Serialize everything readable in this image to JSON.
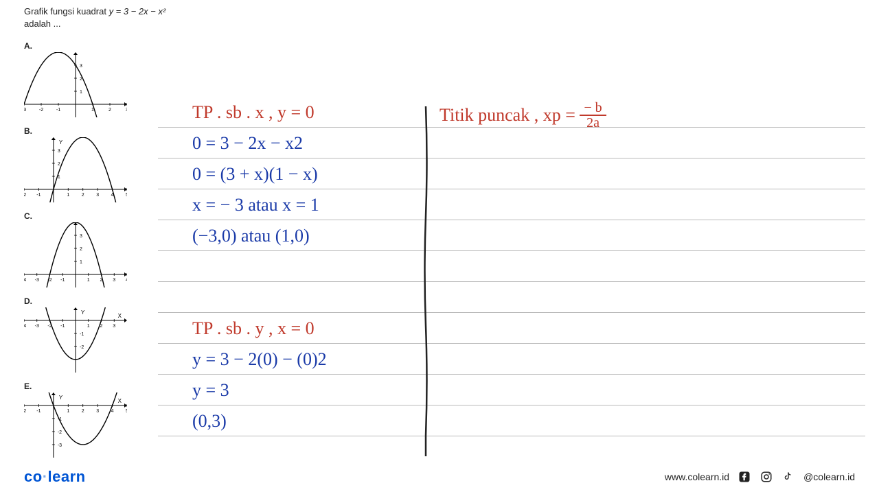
{
  "question": {
    "line1_prefix": "Grafik  fungsi  kuadrat  ",
    "equation": "y = 3 − 2x − x²",
    "line2": "adalah ..."
  },
  "choices": [
    {
      "label": "A.",
      "parabola": {
        "dir": "down",
        "vx": -1,
        "vy": 4,
        "roots": [
          -3,
          1
        ]
      },
      "xrange": [
        -3,
        3
      ],
      "yrange": [
        -1,
        4
      ],
      "xticks": [
        -3,
        -2,
        -1,
        0,
        1,
        2,
        3
      ],
      "yticks": [
        1,
        2,
        3
      ]
    },
    {
      "label": "B.",
      "parabola": {
        "dir": "down",
        "vx": 2,
        "vy": 4,
        "roots": [
          0,
          4
        ]
      },
      "xrange": [
        -2,
        5
      ],
      "yrange": [
        -1,
        4
      ],
      "xticks": [
        -2,
        -1,
        0,
        1,
        2,
        3,
        4,
        5
      ],
      "yticks": [
        1,
        2,
        3
      ],
      "ylabel": "Y"
    },
    {
      "label": "C.",
      "parabola": {
        "dir": "down",
        "vx": 0,
        "vy": 4,
        "roots": [
          -2,
          2
        ]
      },
      "xrange": [
        -4,
        4
      ],
      "yrange": [
        -1,
        4
      ],
      "xticks": [
        -4,
        -3,
        -2,
        -1,
        0,
        1,
        2,
        3,
        4
      ],
      "yticks": [
        1,
        2,
        3
      ]
    },
    {
      "label": "D.",
      "parabola": {
        "dir": "up",
        "vx": 0,
        "vy": -3,
        "roots": [
          -2,
          2
        ]
      },
      "xrange": [
        -4,
        4
      ],
      "yrange": [
        -4,
        1
      ],
      "xticks": [
        -4,
        -3,
        -2,
        -1,
        0,
        1,
        2,
        3
      ],
      "yticks": [
        -1,
        -2
      ],
      "ylabel": "Y",
      "xlabel": "X"
    },
    {
      "label": "E.",
      "parabola": {
        "dir": "up",
        "vx": 2,
        "vy": -3,
        "roots": [
          0,
          4
        ]
      },
      "xrange": [
        -2,
        5
      ],
      "yrange": [
        -4,
        1
      ],
      "xticks": [
        -2,
        -1,
        0,
        1,
        2,
        3,
        4,
        5
      ],
      "yticks": [
        -1,
        -2,
        -3
      ],
      "ylabel": "Y",
      "xlabel": "X"
    }
  ],
  "ruled": {
    "line_count": 11,
    "line_spacing": 45,
    "line_color": "#b9b9b9"
  },
  "handwriting": {
    "color_main": "#1a3aa8",
    "color_header": "#c0392b",
    "lines_left": [
      {
        "text": "TP . sb . x  ,   y = 0",
        "y": 0,
        "color": "red"
      },
      {
        "text": "0 =  3 − 2x − x",
        "y": 1,
        "sup": "2"
      },
      {
        "text": "0 = (3 + x)(1 − x)",
        "y": 2
      },
      {
        "text": "x = − 3  atau   x = 1",
        "y": 3
      },
      {
        "text": "(−3,0)  atau  (1,0)",
        "y": 4
      },
      {
        "text": "TP . sb . y ,  x = 0",
        "y": 7,
        "color": "red"
      },
      {
        "text": "y = 3 − 2(0) − (0)",
        "y": 8,
        "sup": "2"
      },
      {
        "text": "y = 3",
        "y": 9
      },
      {
        "text": "(0,3)",
        "y": 10
      }
    ],
    "lines_right": [
      {
        "text": "Titik puncak ,  xp =",
        "y": 0,
        "color": "red",
        "frac": {
          "num": "− b",
          "den": "2a"
        }
      }
    ]
  },
  "footer": {
    "logo_part1": "co",
    "logo_part2": "learn",
    "url": "www.colearn.id",
    "handle": "@colearn.id"
  }
}
